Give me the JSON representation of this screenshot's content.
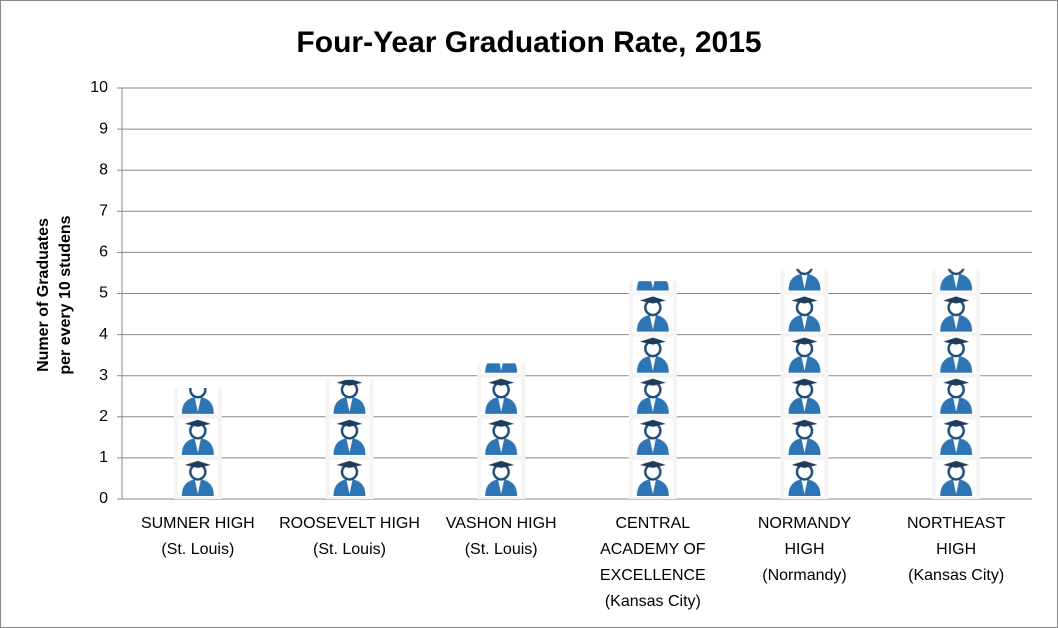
{
  "chart_data": {
    "type": "pictograph",
    "title": "Four-Year Graduation Rate, 2015",
    "y_label": "Numer of Graduates\nper every 10 studens",
    "categories": [
      "SUMNER HIGH\n(St. Louis)",
      "ROOSEVELT HIGH\n(St. Louis)",
      "VASHON HIGH\n(St. Louis)",
      "CENTRAL\nACADEMY OF\nEXCELLENCE\n(Kansas City)",
      "NORMANDY\nHIGH\n(Normandy)",
      "NORTHEAST\nHIGH\n(Kansas City)"
    ],
    "values": [
      2.7,
      2.9,
      3.3,
      5.3,
      5.6,
      5.6
    ],
    "color": "#2e75b6",
    "ylim": [
      0,
      10
    ],
    "yticks": [
      0,
      1,
      2,
      3,
      4,
      5,
      6,
      7,
      8,
      9,
      10
    ],
    "grid": true
  }
}
